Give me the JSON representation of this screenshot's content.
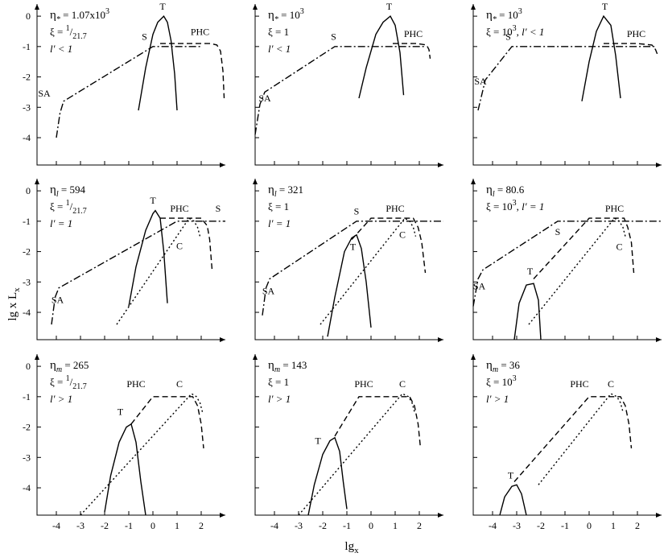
{
  "figure": {
    "ylabel_main": "lg x L",
    "ylabel_sub": "x",
    "xlabel_main": "lg",
    "xlabel_sub": "x"
  },
  "chart_data": [
    {
      "type": "line",
      "row": 0,
      "col": 0,
      "xlim": [
        -4.8,
        3.0
      ],
      "ylim": [
        -4.9,
        0.4
      ],
      "xticks": [],
      "yticks": [
        "0",
        "-1",
        "-2",
        "-3",
        "-4"
      ],
      "annotation": [
        {
          "sym": "η",
          "sub": "*",
          "text": " = 1.07x10",
          "sup": "3"
        },
        {
          "text": "ξ = ",
          "sup": "1",
          "text2": "/",
          "sub": "21.7"
        },
        {
          "text": "l′ < 1",
          "italic": true
        }
      ],
      "series": [
        {
          "name": "SA-S",
          "style": "dashdot",
          "x": [
            -4.0,
            -3.85,
            -3.7,
            0.0,
            2.0
          ],
          "y": [
            -4.0,
            -3.2,
            -2.8,
            -1.0,
            -1.0
          ]
        },
        {
          "name": "T",
          "style": "solid",
          "x": [
            -0.6,
            -0.3,
            0.0,
            0.2,
            0.45,
            0.6,
            0.75,
            0.9,
            1.0
          ],
          "y": [
            -3.1,
            -1.7,
            -0.6,
            -0.2,
            0.0,
            -0.2,
            -0.8,
            -1.9,
            -3.1
          ]
        },
        {
          "name": "PHC",
          "style": "dashed",
          "x": [
            0.3,
            1.8,
            2.4,
            2.65,
            2.8,
            2.9,
            2.95
          ],
          "y": [
            -0.9,
            -0.9,
            -0.9,
            -0.95,
            -1.15,
            -1.8,
            -2.7
          ]
        }
      ],
      "labels": [
        {
          "text": "SA",
          "x": -4.5,
          "y": -2.65
        },
        {
          "text": "S",
          "x": -0.35,
          "y": -0.78
        },
        {
          "text": "T",
          "x": 0.4,
          "y": 0.22
        },
        {
          "text": "PHC",
          "x": 1.95,
          "y": -0.62
        }
      ]
    },
    {
      "type": "line",
      "row": 0,
      "col": 1,
      "xlim": [
        -4.8,
        3.0
      ],
      "ylim": [
        -4.9,
        0.4
      ],
      "xticks": [],
      "yticks": [],
      "annotation": [
        {
          "sym": "η",
          "sub": "*",
          "text": " = 10",
          "sup": "3"
        },
        {
          "text": "ξ = 1"
        },
        {
          "text": "l′ < 1",
          "italic": true
        }
      ],
      "series": [
        {
          "name": "SA-S",
          "style": "dashdot",
          "x": [
            -4.8,
            -4.6,
            -4.4,
            -1.5,
            2.2
          ],
          "y": [
            -3.9,
            -2.9,
            -2.5,
            -1.0,
            -1.0
          ]
        },
        {
          "name": "T",
          "style": "solid",
          "x": [
            -0.5,
            -0.2,
            0.2,
            0.5,
            0.8,
            1.0,
            1.2,
            1.35
          ],
          "y": [
            -2.7,
            -1.7,
            -0.6,
            -0.2,
            0.0,
            -0.3,
            -1.2,
            -2.6
          ]
        },
        {
          "name": "PHC",
          "style": "dashed",
          "x": [
            0.9,
            1.9,
            2.3,
            2.4,
            2.45
          ],
          "y": [
            -0.9,
            -0.9,
            -0.95,
            -1.1,
            -1.4
          ]
        }
      ],
      "labels": [
        {
          "text": "SA",
          "x": -4.4,
          "y": -2.8
        },
        {
          "text": "S",
          "x": -1.55,
          "y": -0.78
        },
        {
          "text": "T",
          "x": 0.75,
          "y": 0.22
        },
        {
          "text": "PHC",
          "x": 1.75,
          "y": -0.68
        }
      ]
    },
    {
      "type": "line",
      "row": 0,
      "col": 2,
      "xlim": [
        -4.8,
        3.0
      ],
      "ylim": [
        -4.9,
        0.4
      ],
      "xticks": [],
      "yticks": [],
      "annotation": [
        {
          "sym": "η",
          "sub": "*",
          "text": " = 10",
          "sup": "3"
        },
        {
          "text": "ξ = 10",
          "sup": "3",
          "text2": ",   ",
          "italic2": "l′ < 1"
        }
      ],
      "series": [
        {
          "name": "SA-S",
          "style": "dashdot",
          "x": [
            -4.6,
            -4.3,
            -4.1,
            -3.2,
            2.8
          ],
          "y": [
            -3.1,
            -2.1,
            -1.9,
            -1.0,
            -1.0
          ]
        },
        {
          "name": "T",
          "style": "solid",
          "x": [
            -0.3,
            0.0,
            0.3,
            0.6,
            0.9,
            1.1,
            1.3
          ],
          "y": [
            -2.8,
            -1.5,
            -0.5,
            0.0,
            -0.3,
            -1.3,
            -2.7
          ]
        },
        {
          "name": "PHC",
          "style": "dashed",
          "x": [
            0.6,
            2.0,
            2.6,
            2.75,
            2.85
          ],
          "y": [
            -0.9,
            -0.9,
            -0.95,
            -1.1,
            -1.3
          ]
        }
      ],
      "labels": [
        {
          "text": "SA",
          "x": -4.5,
          "y": -2.25
        },
        {
          "text": "S",
          "x": -3.35,
          "y": -0.78
        },
        {
          "text": "T",
          "x": 0.65,
          "y": 0.22
        },
        {
          "text": "PHC",
          "x": 1.95,
          "y": -0.68
        }
      ]
    },
    {
      "type": "line",
      "row": 1,
      "col": 0,
      "xlim": [
        -4.8,
        3.0
      ],
      "ylim": [
        -4.9,
        0.4
      ],
      "xticks": [],
      "yticks": [
        "0",
        "-1",
        "-2",
        "-3",
        "-4"
      ],
      "annotation": [
        {
          "sym": "η",
          "sub": "l",
          "text": " = 594"
        },
        {
          "text": "ξ = ",
          "sup": "1",
          "text2": "/",
          "sub": "21.7"
        },
        {
          "text": "l′ = 1",
          "italic": true
        }
      ],
      "series": [
        {
          "name": "SA-S",
          "style": "dashdot",
          "x": [
            -4.2,
            -4.05,
            -3.9,
            1.0,
            3.0
          ],
          "y": [
            -4.4,
            -3.5,
            -3.2,
            -1.0,
            -1.0
          ]
        },
        {
          "name": "T",
          "style": "solid",
          "x": [
            -1.0,
            -0.7,
            -0.3,
            0.0,
            0.1,
            0.3,
            0.45,
            0.6
          ],
          "y": [
            -3.8,
            -2.5,
            -1.3,
            -0.75,
            -0.65,
            -0.9,
            -2.0,
            -3.7
          ]
        },
        {
          "name": "PHC",
          "style": "dashed",
          "x": [
            0.3,
            2.0,
            2.25,
            2.35,
            2.45
          ],
          "y": [
            -0.9,
            -0.9,
            -1.15,
            -1.6,
            -2.6
          ]
        },
        {
          "name": "C",
          "style": "dotted",
          "x": [
            -1.5,
            1.5,
            1.7,
            1.85,
            1.95
          ],
          "y": [
            -4.4,
            -0.9,
            -1.0,
            -1.2,
            -1.5
          ]
        }
      ],
      "labels": [
        {
          "text": "SA",
          "x": -3.95,
          "y": -3.7
        },
        {
          "text": "T",
          "x": 0.0,
          "y": -0.42
        },
        {
          "text": "PHC",
          "x": 1.1,
          "y": -0.68
        },
        {
          "text": "S",
          "x": 2.7,
          "y": -0.68
        },
        {
          "text": "C",
          "x": 1.1,
          "y": -1.92
        }
      ]
    },
    {
      "type": "line",
      "row": 1,
      "col": 1,
      "xlim": [
        -4.8,
        3.0
      ],
      "ylim": [
        -4.9,
        0.4
      ],
      "xticks": [],
      "yticks": [],
      "annotation": [
        {
          "sym": "η",
          "sub": "l",
          "text": " = 321"
        },
        {
          "text": "ξ = 1"
        },
        {
          "text": "l′ = 1",
          "italic": true
        }
      ],
      "series": [
        {
          "name": "SA-S",
          "style": "dashdot",
          "x": [
            -4.5,
            -4.35,
            -4.2,
            -0.6,
            3.0
          ],
          "y": [
            -4.1,
            -3.2,
            -2.9,
            -1.0,
            -1.0
          ]
        },
        {
          "name": "T",
          "style": "solid",
          "x": [
            -1.8,
            -1.5,
            -1.1,
            -0.8,
            -0.6,
            -0.4,
            -0.2,
            0.0
          ],
          "y": [
            -4.8,
            -3.5,
            -2.0,
            -1.55,
            -1.45,
            -1.9,
            -3.0,
            -4.5
          ]
        },
        {
          "name": "PHC",
          "style": "dashed",
          "x": [
            -0.8,
            0.0,
            1.75,
            1.95,
            2.1,
            2.25
          ],
          "y": [
            -1.6,
            -0.9,
            -0.9,
            -1.2,
            -1.7,
            -2.7
          ]
        },
        {
          "name": "C",
          "style": "dotted",
          "x": [
            -2.1,
            1.4,
            1.6,
            1.75,
            1.85
          ],
          "y": [
            -4.4,
            -0.9,
            -1.0,
            -1.2,
            -1.5
          ]
        }
      ],
      "labels": [
        {
          "text": "SA",
          "x": -4.25,
          "y": -3.4
        },
        {
          "text": "S",
          "x": -0.6,
          "y": -0.78
        },
        {
          "text": "T",
          "x": -0.75,
          "y": -1.95
        },
        {
          "text": "PHC",
          "x": 1.0,
          "y": -0.68
        },
        {
          "text": "C",
          "x": 1.3,
          "y": -1.55
        }
      ]
    },
    {
      "type": "line",
      "row": 1,
      "col": 2,
      "xlim": [
        -4.8,
        3.0
      ],
      "ylim": [
        -4.9,
        0.4
      ],
      "xticks": [],
      "yticks": [],
      "annotation": [
        {
          "sym": "η",
          "sub": "l",
          "text": " = 80.6"
        },
        {
          "text": "ξ = 10",
          "sup": "3",
          "text2": ",   ",
          "italic2": "l′ = 1"
        }
      ],
      "series": [
        {
          "name": "SA-S",
          "style": "dashdot",
          "x": [
            -4.8,
            -4.6,
            -4.4,
            -1.3,
            3.0
          ],
          "y": [
            -3.8,
            -2.9,
            -2.6,
            -1.0,
            -1.0
          ]
        },
        {
          "name": "T",
          "style": "solid",
          "x": [
            -3.1,
            -2.9,
            -2.6,
            -2.3,
            -2.1,
            -2.0
          ],
          "y": [
            -4.9,
            -3.7,
            -3.1,
            -3.05,
            -3.6,
            -4.9
          ]
        },
        {
          "name": "PHC",
          "style": "dashed",
          "x": [
            -2.3,
            0.0,
            1.45,
            1.6,
            1.75,
            1.85
          ],
          "y": [
            -2.9,
            -0.9,
            -0.9,
            -1.2,
            -1.7,
            -2.7
          ]
        },
        {
          "name": "C",
          "style": "dotted",
          "x": [
            -2.5,
            1.05,
            1.25,
            1.4,
            1.5
          ],
          "y": [
            -4.4,
            -0.9,
            -1.0,
            -1.2,
            -1.5
          ]
        }
      ],
      "labels": [
        {
          "text": "SA",
          "x": -4.55,
          "y": -3.25
        },
        {
          "text": "S",
          "x": -1.3,
          "y": -1.45
        },
        {
          "text": "T",
          "x": -2.45,
          "y": -2.75
        },
        {
          "text": "PHC",
          "x": 1.05,
          "y": -0.68
        },
        {
          "text": "C",
          "x": 1.25,
          "y": -1.95
        }
      ]
    },
    {
      "type": "line",
      "row": 2,
      "col": 0,
      "xlim": [
        -4.8,
        3.0
      ],
      "ylim": [
        -4.9,
        0.4
      ],
      "xticks": [
        "-4",
        "-3",
        "-2",
        "-1",
        "0",
        "1",
        "2"
      ],
      "yticks": [
        "0",
        "-1",
        "-2",
        "-3",
        "-4"
      ],
      "annotation": [
        {
          "sym": "η",
          "sub": "m",
          "text": " = 265"
        },
        {
          "text": "ξ = ",
          "sup": "1",
          "text2": "/",
          "sub": "21.7"
        },
        {
          "text": "l′ > 1",
          "italic": true
        }
      ],
      "series": [
        {
          "name": "T",
          "style": "solid",
          "x": [
            -2.0,
            -1.75,
            -1.4,
            -1.1,
            -0.9,
            -0.7,
            -0.5,
            -0.3
          ],
          "y": [
            -4.8,
            -3.6,
            -2.5,
            -2.0,
            -1.9,
            -2.5,
            -3.8,
            -4.9
          ]
        },
        {
          "name": "PHC",
          "style": "dashed",
          "x": [
            -0.9,
            0.0,
            1.65,
            1.85,
            2.0,
            2.1
          ],
          "y": [
            -1.9,
            -1.0,
            -1.0,
            -1.3,
            -1.9,
            -2.7
          ]
        },
        {
          "name": "C",
          "style": "dotted",
          "x": [
            -3.0,
            1.6,
            1.8,
            1.95,
            2.05
          ],
          "y": [
            -4.9,
            -0.9,
            -1.0,
            -1.2,
            -1.5
          ]
        }
      ],
      "labels": [
        {
          "text": "T",
          "x": -1.35,
          "y": -1.6
        },
        {
          "text": "PHC",
          "x": -0.7,
          "y": -0.68
        },
        {
          "text": "C",
          "x": 1.1,
          "y": -0.68
        }
      ]
    },
    {
      "type": "line",
      "row": 2,
      "col": 1,
      "xlim": [
        -4.8,
        3.0
      ],
      "ylim": [
        -4.9,
        0.4
      ],
      "xticks": [
        "-4",
        "-3",
        "-2",
        "-1",
        "0",
        "1",
        "2"
      ],
      "yticks": [],
      "annotation": [
        {
          "sym": "η",
          "sub": "m",
          "text": " = 143"
        },
        {
          "text": "ξ = 1"
        },
        {
          "text": "l′ > 1",
          "italic": true
        }
      ],
      "series": [
        {
          "name": "T",
          "style": "solid",
          "x": [
            -2.6,
            -2.35,
            -2.0,
            -1.7,
            -1.5,
            -1.3,
            -1.15,
            -1.0
          ],
          "y": [
            -4.9,
            -3.9,
            -2.9,
            -2.45,
            -2.35,
            -2.8,
            -3.8,
            -4.7
          ]
        },
        {
          "name": "PHC",
          "style": "dashed",
          "x": [
            -1.5,
            -0.5,
            1.6,
            1.8,
            1.95,
            2.05
          ],
          "y": [
            -2.3,
            -1.0,
            -1.0,
            -1.3,
            -1.9,
            -2.7
          ]
        },
        {
          "name": "C",
          "style": "dotted",
          "x": [
            -3.0,
            1.3,
            1.55,
            1.7,
            1.8
          ],
          "y": [
            -4.9,
            -0.9,
            -1.0,
            -1.2,
            -1.5
          ]
        }
      ],
      "labels": [
        {
          "text": "T",
          "x": -2.2,
          "y": -2.55
        },
        {
          "text": "PHC",
          "x": -0.3,
          "y": -0.68
        },
        {
          "text": "C",
          "x": 1.3,
          "y": -0.68
        }
      ]
    },
    {
      "type": "line",
      "row": 2,
      "col": 2,
      "xlim": [
        -4.8,
        3.0
      ],
      "ylim": [
        -4.9,
        0.4
      ],
      "xticks": [
        "-4",
        "-3",
        "-2",
        "-1",
        "0",
        "1",
        "2"
      ],
      "yticks": [],
      "annotation": [
        {
          "sym": "η",
          "sub": "m",
          "text": " = 36"
        },
        {
          "text": "ξ = 10",
          "sup": "3"
        },
        {
          "text": "l′ > 1",
          "italic": true
        }
      ],
      "series": [
        {
          "name": "T",
          "style": "solid",
          "x": [
            -3.7,
            -3.5,
            -3.2,
            -3.0,
            -2.8,
            -2.6
          ],
          "y": [
            -4.9,
            -4.3,
            -3.95,
            -3.9,
            -4.2,
            -4.9
          ]
        },
        {
          "name": "PHC",
          "style": "dashed",
          "x": [
            -3.1,
            0.0,
            1.3,
            1.5,
            1.65,
            1.75
          ],
          "y": [
            -3.8,
            -1.0,
            -1.0,
            -1.3,
            -1.9,
            -2.7
          ]
        },
        {
          "name": "C",
          "style": "dotted",
          "x": [
            -2.1,
            0.9,
            1.15,
            1.3,
            1.4
          ],
          "y": [
            -3.9,
            -0.9,
            -1.0,
            -1.2,
            -1.5
          ]
        }
      ],
      "labels": [
        {
          "text": "T",
          "x": -3.25,
          "y": -3.7
        },
        {
          "text": "PHC",
          "x": -0.4,
          "y": -0.68
        },
        {
          "text": "C",
          "x": 0.9,
          "y": -0.68
        }
      ]
    }
  ]
}
